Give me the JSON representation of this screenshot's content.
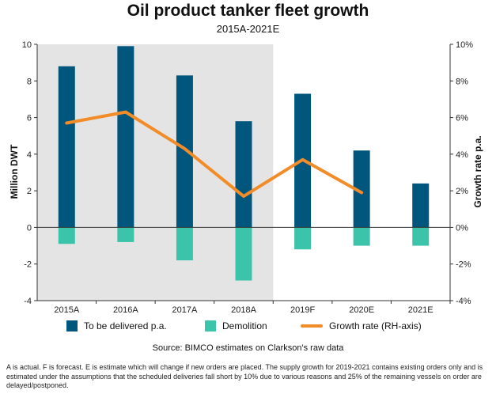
{
  "chart_data": {
    "type": "bar",
    "title": "Oil product tanker fleet growth",
    "subtitle": "2015A-2021E",
    "categories": [
      "2015A",
      "2016A",
      "2017A",
      "2018A",
      "2019F",
      "2020E",
      "2021E"
    ],
    "series": [
      {
        "name": "To be delivered p.a.",
        "type": "bar",
        "axis": "left",
        "values": [
          8.8,
          9.9,
          8.3,
          5.8,
          7.3,
          4.2,
          2.4
        ]
      },
      {
        "name": "Demolition",
        "type": "bar",
        "axis": "left",
        "values": [
          -0.9,
          -0.8,
          -1.8,
          -2.9,
          -1.2,
          -1.0,
          -1.0
        ]
      },
      {
        "name": "Growth rate (RH-axis)",
        "type": "line",
        "axis": "right",
        "values": [
          5.7,
          6.3,
          4.3,
          1.7,
          3.7,
          1.9,
          null
        ]
      }
    ],
    "ylabel": "Million DWT",
    "ylabel_right": "Growth rate p.a.",
    "ylim": [
      -4,
      10
    ],
    "ylim_right": [
      -4,
      10
    ],
    "yticks": [
      "-4",
      "-2",
      "0",
      "2",
      "4",
      "6",
      "8",
      "10"
    ],
    "yticks_right": [
      "-4%",
      "-2%",
      "0%",
      "2%",
      "4%",
      "6%",
      "8%",
      "10%"
    ],
    "shaded_categories": [
      "2015A",
      "2016A",
      "2017A",
      "2018A"
    ],
    "legend_position": "bottom",
    "grid": false
  },
  "colors": {
    "delivered": "#00567d",
    "demolition": "#3cc4aa",
    "growth": "#f28c28",
    "shade": "#e4e4e4"
  },
  "source": "Source: BIMCO estimates on Clarkson's raw data",
  "footnote": "A is actual. F is forecast. E is estimate which will change if new orders are placed. The supply growth for 2019-2021 contains existing orders only and is estimated under the assumptions that the scheduled deliveries fall short by 10% due to various reasons and 25% of the remaining vessels on order are delayed/postponed."
}
